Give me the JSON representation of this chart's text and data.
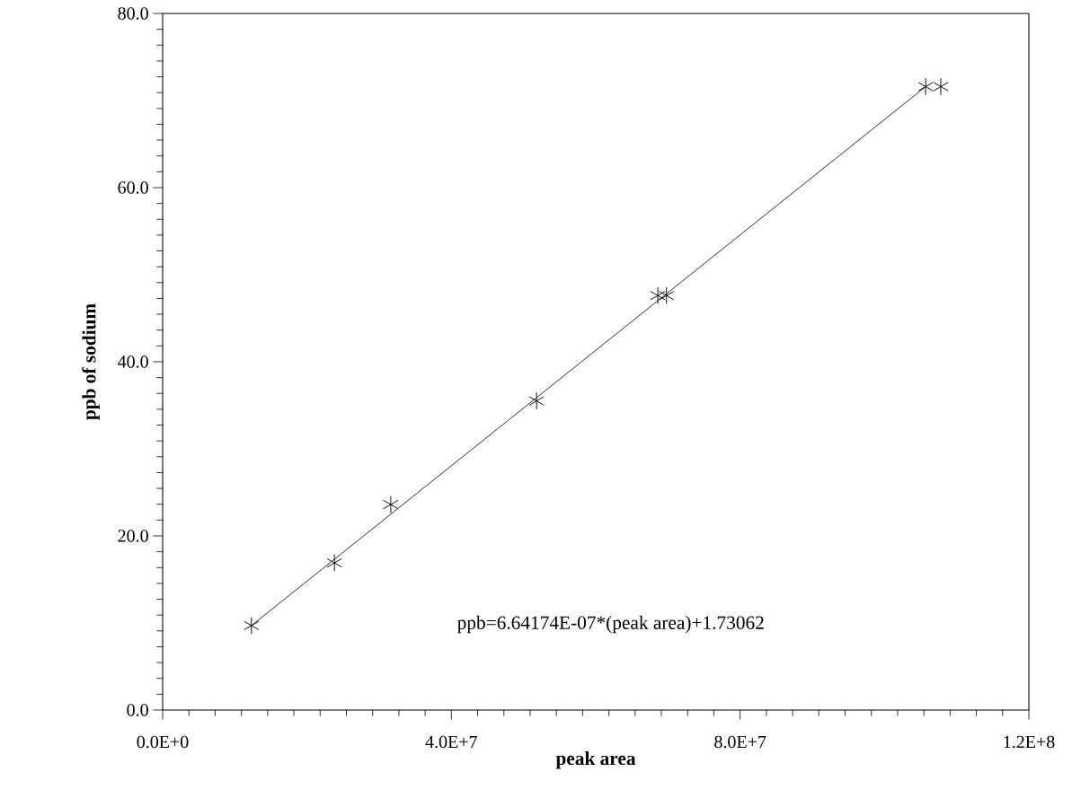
{
  "chart_data": {
    "type": "scatter",
    "xlabel": "peak area",
    "ylabel": "ppb of sodium",
    "xlim": [
      0,
      120000000
    ],
    "ylim": [
      0,
      80
    ],
    "xticks": [
      {
        "value": 0,
        "label": "0.0E+0"
      },
      {
        "value": 40000000,
        "label": "4.0E+7"
      },
      {
        "value": 80000000,
        "label": "8.0E+7"
      },
      {
        "value": 120000000,
        "label": "1.2E+8"
      }
    ],
    "yticks": [
      {
        "value": 0,
        "label": "0.0"
      },
      {
        "value": 20,
        "label": "20.0"
      },
      {
        "value": 40,
        "label": "40.0"
      },
      {
        "value": 60,
        "label": "60.0"
      },
      {
        "value": 80,
        "label": "80.0"
      }
    ],
    "series": [
      {
        "marker": "cross",
        "color": "#000000",
        "x": [
          12300000,
          23800000,
          31600000,
          51800000,
          68600000,
          69800000,
          105700000,
          107800000
        ],
        "values": [
          9.7,
          16.9,
          23.6,
          35.5,
          47.6,
          47.6,
          71.6,
          71.6
        ]
      },
      {
        "type": "line",
        "marker": "none",
        "color": "#000000",
        "x": [
          12300000,
          105700000
        ],
        "values": [
          9.7,
          71.6
        ]
      }
    ],
    "annotations": [
      "ppb=6.64174E-07*(peak area)+1.73062"
    ]
  }
}
